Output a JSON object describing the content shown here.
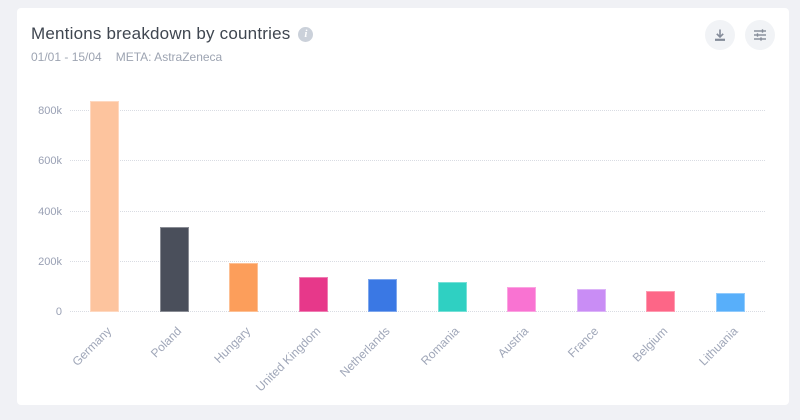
{
  "header": {
    "title": "Mentions breakdown by countries",
    "info_icon": "i",
    "date_range": "01/01 - 15/04",
    "meta_label": "META: AstraZeneca"
  },
  "toolbar": {
    "download_icon": "download-arrow-to-tray",
    "filters_icon": "sliders"
  },
  "colors": {
    "page_bg": "#F0F1F5",
    "card_bg": "#FFFFFF",
    "title_text": "#3F4650",
    "subtitle_text": "#9DA4B2",
    "tick_text": "#99A0B4",
    "xlabel_text": "#9FA6B8",
    "gridline": "#D9DCE3",
    "button_bg": "#F1F3F6",
    "button_icon": "#848B99",
    "info_icon_bg": "#CBD1DA"
  },
  "chart_data": {
    "type": "bar",
    "title": "Mentions breakdown by countries",
    "xlabel": "",
    "ylabel": "",
    "categories": [
      "Germany",
      "Poland",
      "Hungary",
      "United Kingdom",
      "Netherlands",
      "Romania",
      "Austria",
      "France",
      "Belgium",
      "Lithuania"
    ],
    "values": [
      840000,
      340000,
      197000,
      140000,
      130000,
      121000,
      101000,
      91000,
      82000,
      77000
    ],
    "bar_colors": [
      "#FDC49E",
      "#4A4F5B",
      "#FC9E5B",
      "#E7388A",
      "#3A78E4",
      "#2FD0C2",
      "#F973D2",
      "#C98DF5",
      "#FD6687",
      "#58AFFA"
    ],
    "ytick_values": [
      0,
      200000,
      400000,
      600000,
      800000
    ],
    "ytick_labels": [
      "0",
      "200k",
      "400k",
      "600k",
      "800k"
    ],
    "ylim": [
      0,
      880000
    ],
    "grid": "horizontal-dotted",
    "legend": "none"
  }
}
